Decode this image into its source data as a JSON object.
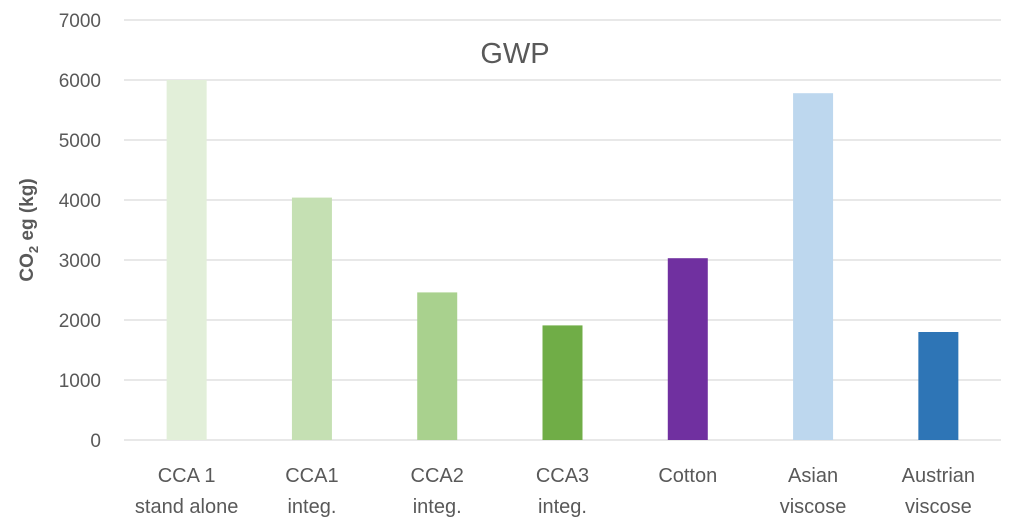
{
  "chart_data": {
    "type": "bar",
    "title": "GWP",
    "ylabel": {
      "prefix": "CO",
      "subscript": "2",
      "suffix": " eg (kg)"
    },
    "xlabel": "",
    "ylim": [
      0,
      7000
    ],
    "yticks": [
      0,
      1000,
      2000,
      3000,
      4000,
      5000,
      6000,
      7000
    ],
    "grid": true,
    "legend": "none",
    "categories": [
      [
        "CCA 1",
        "stand alone"
      ],
      [
        "CCA1",
        "integ."
      ],
      [
        "CCA2",
        "integ."
      ],
      [
        "CCA3",
        "integ."
      ],
      [
        "Cotton"
      ],
      [
        "Asian",
        "viscose"
      ],
      [
        "Austrian",
        "viscose"
      ]
    ],
    "values": [
      6000,
      4040,
      2460,
      1910,
      3030,
      5780,
      1800
    ],
    "colors": [
      "#e2efd9",
      "#c5e0b3",
      "#a9d18e",
      "#70ad47",
      "#7030a0",
      "#bdd7ee",
      "#2e75b6"
    ]
  }
}
